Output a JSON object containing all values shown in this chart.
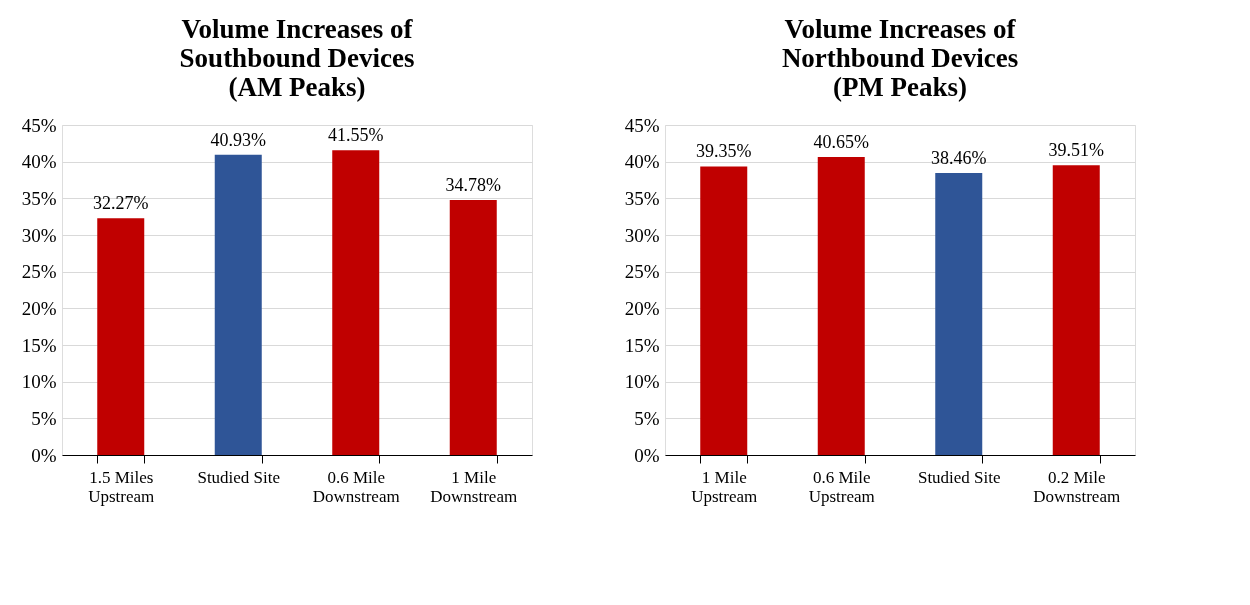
{
  "chart_data": [
    {
      "type": "bar",
      "title": "Volume Increases of\nSouthbound Devices\n(AM Peaks)",
      "categories": [
        "1.5 Miles Upstream",
        "Studied Site",
        "0.6 Mile Downstream",
        "1 Mile Downstream"
      ],
      "values": [
        32.27,
        40.93,
        41.55,
        34.78
      ],
      "colors": [
        "#c00000",
        "#2f5597",
        "#c00000",
        "#c00000"
      ],
      "value_labels": [
        "32.27%",
        "40.93%",
        "41.55%",
        "34.78%"
      ],
      "ylim": [
        0,
        45
      ],
      "yticks": [
        {
          "value": 0,
          "label": "0%"
        },
        {
          "value": 5,
          "label": "5%"
        },
        {
          "value": 10,
          "label": "10%"
        },
        {
          "value": 15,
          "label": "15%"
        },
        {
          "value": 20,
          "label": "20%"
        },
        {
          "value": 25,
          "label": "25%"
        },
        {
          "value": 30,
          "label": "30%"
        },
        {
          "value": 35,
          "label": "35%"
        },
        {
          "value": 40,
          "label": "40%"
        },
        {
          "value": 45,
          "label": "45%"
        }
      ],
      "grid": "y"
    },
    {
      "type": "bar",
      "title": "Volume Increases of\nNorthbound Devices\n(PM Peaks)",
      "categories": [
        "1 Mile Upstream",
        "0.6 Mile Upstream",
        "Studied Site",
        "0.2 Mile Downstream"
      ],
      "values": [
        39.35,
        40.65,
        38.46,
        39.51
      ],
      "colors": [
        "#c00000",
        "#c00000",
        "#2f5597",
        "#c00000"
      ],
      "value_labels": [
        "39.35%",
        "40.65%",
        "38.46%",
        "39.51%"
      ],
      "ylim": [
        0,
        45
      ],
      "yticks": [
        {
          "value": 0,
          "label": "0%"
        },
        {
          "value": 5,
          "label": "5%"
        },
        {
          "value": 10,
          "label": "10%"
        },
        {
          "value": 15,
          "label": "15%"
        },
        {
          "value": 20,
          "label": "20%"
        },
        {
          "value": 25,
          "label": "25%"
        },
        {
          "value": 30,
          "label": "30%"
        },
        {
          "value": 35,
          "label": "35%"
        },
        {
          "value": 40,
          "label": "40%"
        },
        {
          "value": 45,
          "label": "45%"
        }
      ],
      "grid": "y"
    }
  ]
}
